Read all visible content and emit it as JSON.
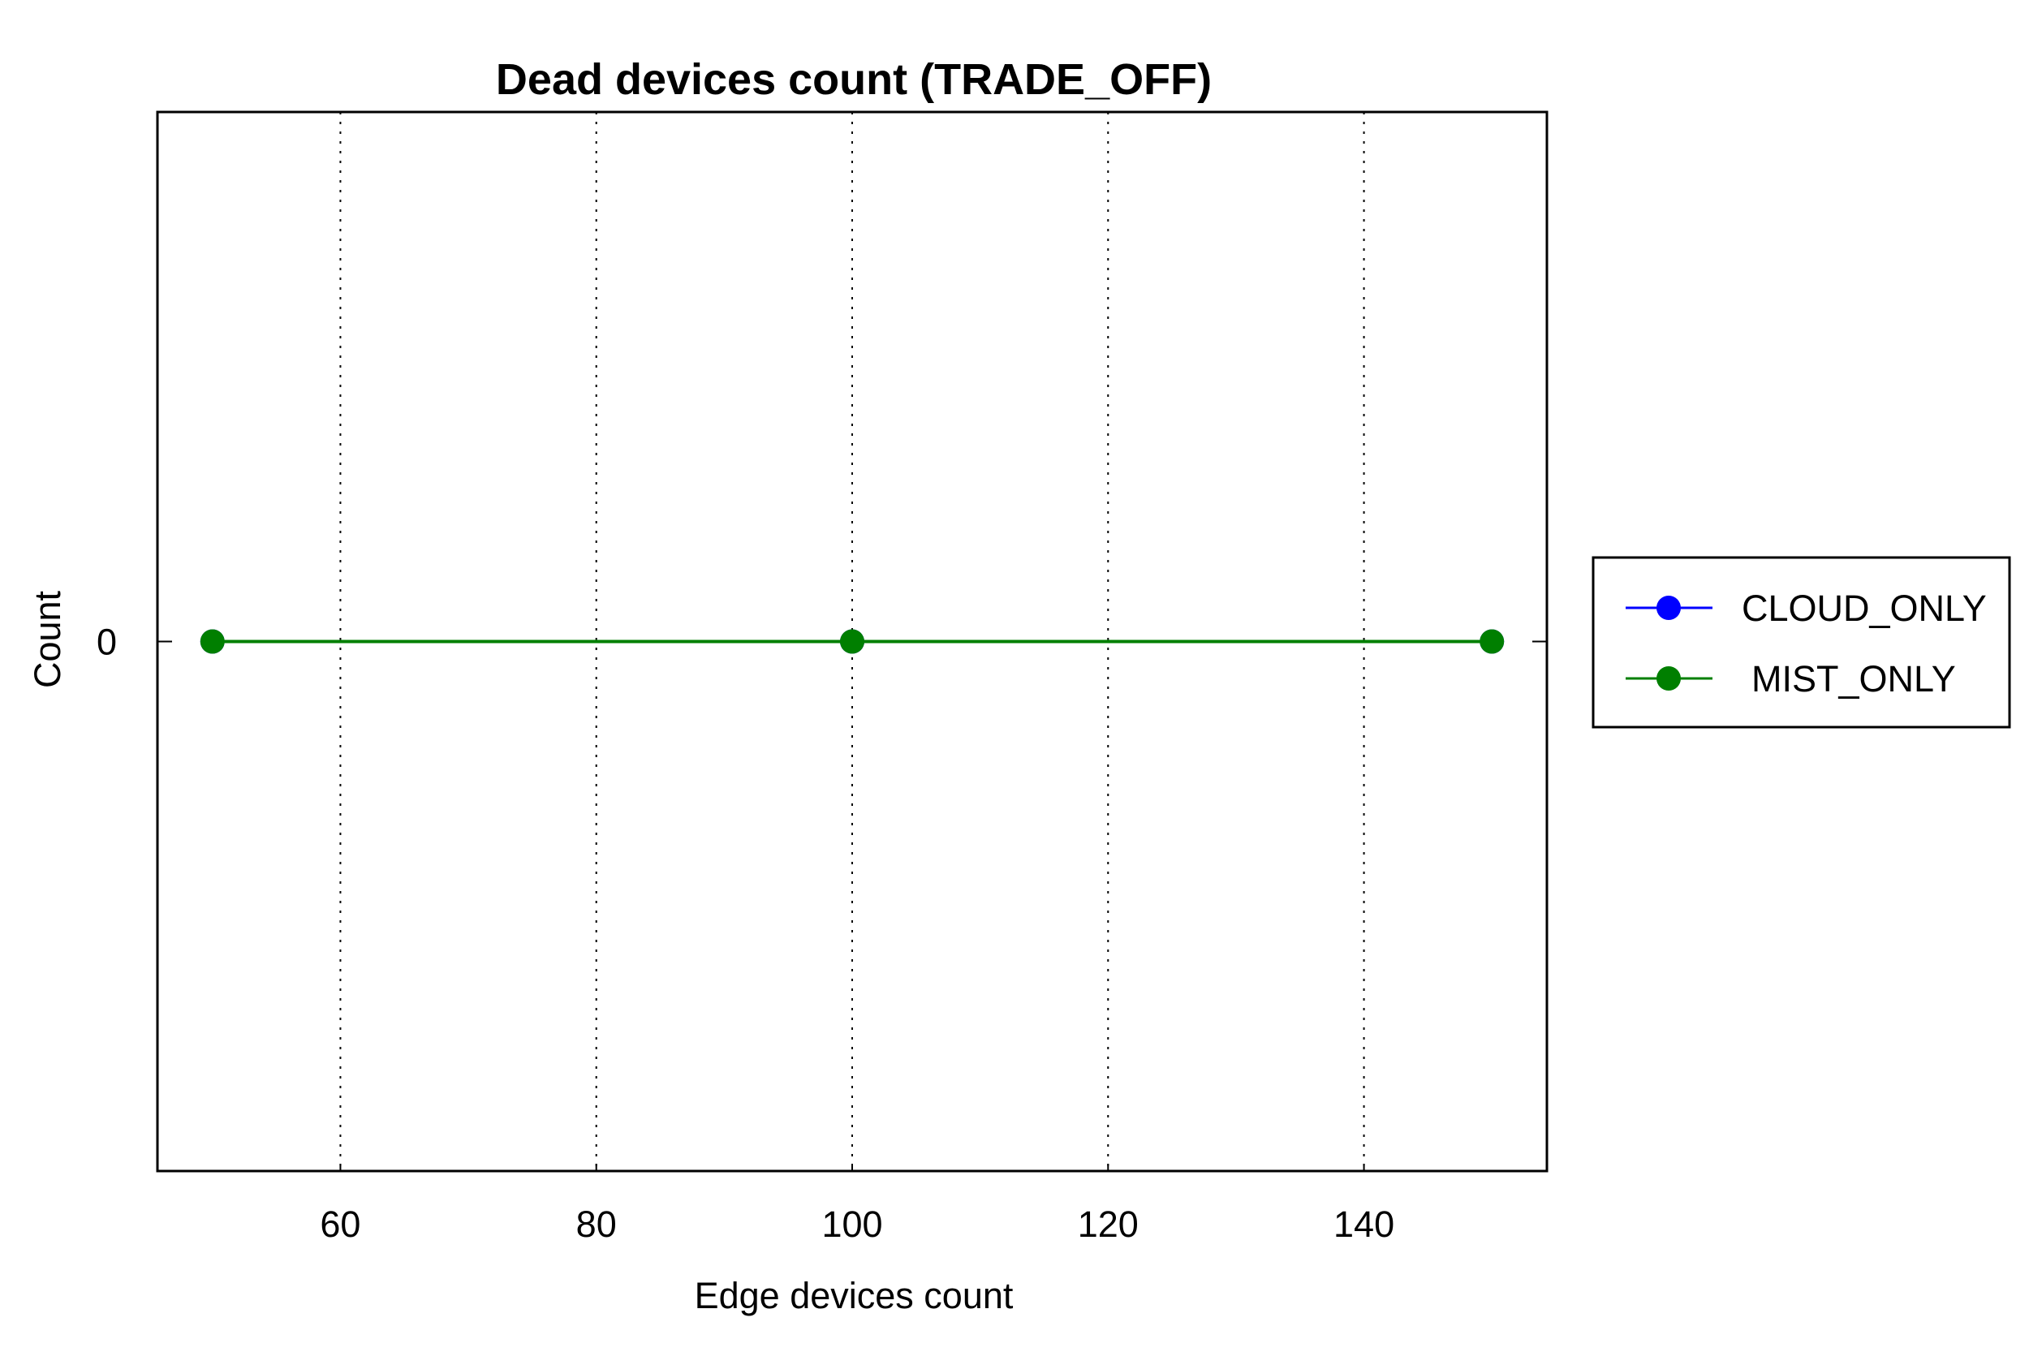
{
  "chart_data": {
    "type": "line",
    "title": "Dead devices count (TRADE_OFF)",
    "xlabel": "Edge devices count",
    "ylabel": "Count",
    "xlim": [
      45.7,
      154.3
    ],
    "ylim": [
      -1,
      1
    ],
    "xticks": [
      60,
      80,
      100,
      120,
      140
    ],
    "xtick_labels": [
      "60",
      "80",
      "100",
      "120",
      "140"
    ],
    "yticks": [
      0
    ],
    "ytick_labels": [
      "0"
    ],
    "grid": "vertical dotted",
    "legend_position": "outside-right",
    "series": [
      {
        "name": "CLOUD_ONLY",
        "color": "#0000ff",
        "marker": "circle",
        "x": [
          50,
          100,
          150
        ],
        "y": [
          0,
          0,
          0
        ]
      },
      {
        "name": "MIST_ONLY",
        "color": "#007f00",
        "marker": "circle",
        "x": [
          50,
          100,
          150
        ],
        "y": [
          0,
          0,
          0
        ]
      }
    ]
  }
}
